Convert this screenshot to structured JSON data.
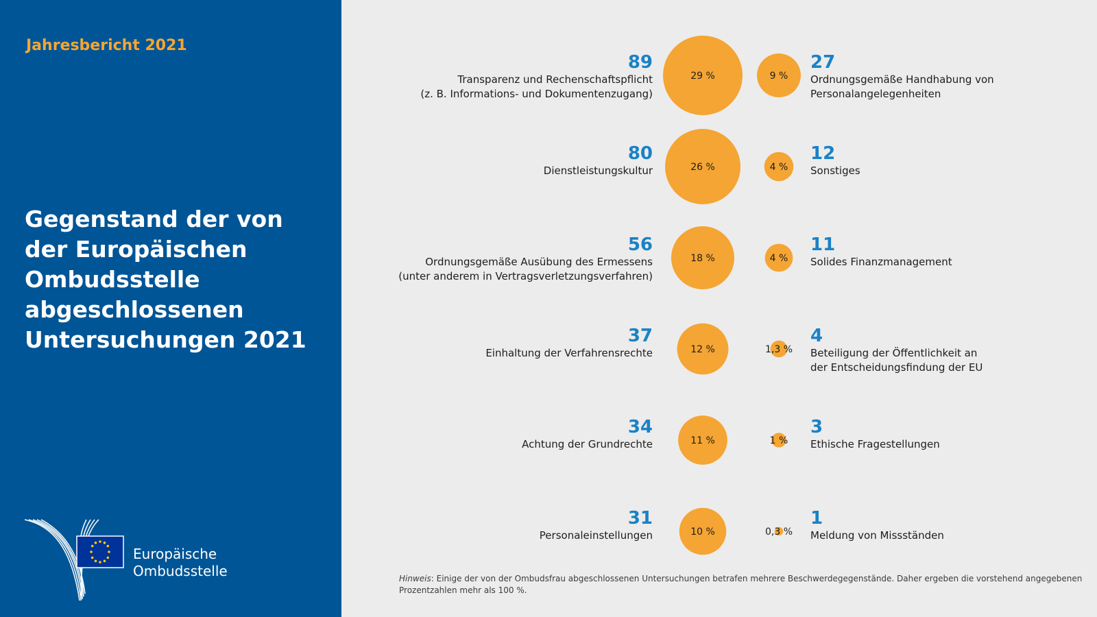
{
  "header": {
    "report_year": "Jahresbericht 2021",
    "title": "Gegenstand der von der Europäischen Ombudsstelle abgeschlossenen Untersuchungen 2021"
  },
  "logo": {
    "line1": "Europäische",
    "line2": "Ombudsstelle"
  },
  "colors": {
    "panel": "#005596",
    "accent": "#f5a533",
    "count": "#1a82c6",
    "background": "#ececec"
  },
  "note": {
    "prefix": "Hinweis",
    "text": ": Einige der von der Ombudsfrau abgeschlossenen Untersuchungen betrafen mehrere Beschwerdegegenstände. Daher ergeben die vorstehend angegebenen Prozentzahlen mehr als 100 %."
  },
  "chart_data": {
    "type": "bubble",
    "title": "Gegenstand der von der Europäischen Ombudsstelle abgeschlossenen Untersuchungen 2021",
    "columns": [
      {
        "items": [
          {
            "count": "89",
            "value": 89,
            "percent": "29 %",
            "label": "Transparenz und Rechenschaftspflicht\n(z. B. Informations- und Dokumentenzugang)"
          },
          {
            "count": "80",
            "value": 80,
            "percent": "26 %",
            "label": "Dienstleistungskultur"
          },
          {
            "count": "56",
            "value": 56,
            "percent": "18 %",
            "label": "Ordnungsgemäße Ausübung des Ermessens\n(unter anderem in Vertragsverletzungsverfahren)"
          },
          {
            "count": "37",
            "value": 37,
            "percent": "12 %",
            "label": "Einhaltung der Verfahrensrechte"
          },
          {
            "count": "34",
            "value": 34,
            "percent": "11 %",
            "label": "Achtung der Grundrechte"
          },
          {
            "count": "31",
            "value": 31,
            "percent": "10 %",
            "label": "Personaleinstellungen"
          }
        ]
      },
      {
        "items": [
          {
            "count": "27",
            "value": 27,
            "percent": "9 %",
            "label": "Ordnungsgemäße Handhabung von\nPersonalangelegenheiten"
          },
          {
            "count": "12",
            "value": 12,
            "percent": "4 %",
            "label": "Sonstiges"
          },
          {
            "count": "11",
            "value": 11,
            "percent": "4 %",
            "label": "Solides Finanzmanagement"
          },
          {
            "count": "4",
            "value": 4,
            "percent": "1,3 %",
            "label": "Beteiligung der Öffentlichkeit an\nder Entscheidungsfindung der EU"
          },
          {
            "count": "3",
            "value": 3,
            "percent": "1 %",
            "label": "Ethische Fragestellungen"
          },
          {
            "count": "1",
            "value": 1,
            "percent": "0,3 %",
            "label": "Meldung von Missständen"
          }
        ]
      }
    ]
  }
}
